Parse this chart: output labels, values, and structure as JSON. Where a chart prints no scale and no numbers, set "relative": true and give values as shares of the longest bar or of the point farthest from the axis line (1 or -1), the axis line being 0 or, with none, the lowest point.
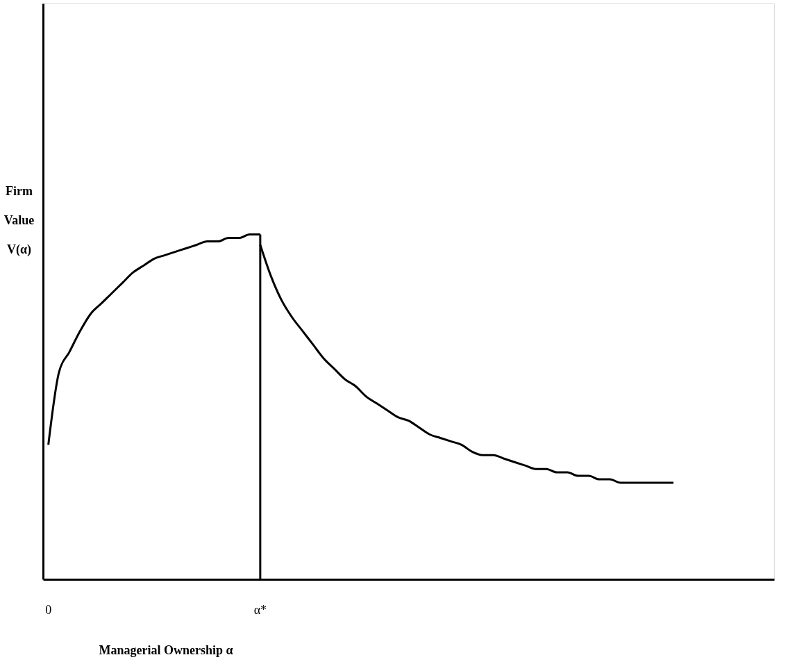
{
  "chart_data": {
    "type": "line",
    "relative": true,
    "xlabel": "Managerial Ownership  α",
    "ylabel": "Firm Value V(α)",
    "grid": false,
    "marker": "none",
    "line_style": "solid",
    "categories": [
      "0",
      null,
      null,
      null,
      null,
      null,
      null,
      null,
      null,
      null,
      null,
      null,
      null,
      null,
      null,
      null,
      null,
      null,
      null,
      null,
      "α*",
      null,
      null,
      null,
      null,
      null,
      null,
      null,
      null,
      null,
      null,
      null,
      null,
      null,
      null,
      null,
      null,
      null,
      null,
      null,
      null,
      null,
      null,
      null,
      null,
      null,
      null,
      null,
      null,
      null,
      null,
      null,
      null,
      null,
      null,
      null,
      null,
      null,
      null,
      null,
      null,
      null,
      null,
      null,
      null,
      null,
      null,
      null,
      null
    ],
    "series": [
      {
        "color": "#000000",
        "values": [
          0.39,
          0.6,
          0.66,
          0.72,
          0.77,
          0.8,
          0.83,
          0.86,
          0.89,
          0.91,
          0.93,
          0.94,
          0.95,
          0.96,
          0.97,
          0.98,
          0.98,
          0.99,
          0.99,
          1,
          1,
          null,
          null,
          null,
          null,
          null,
          null,
          null,
          null,
          null,
          null,
          null,
          null,
          null,
          null,
          null,
          null,
          null,
          null,
          null,
          null,
          null,
          null,
          null,
          null,
          null,
          null,
          null,
          null,
          null,
          null,
          null,
          null,
          null,
          null,
          null,
          null,
          null,
          null,
          null,
          null,
          null,
          null,
          null,
          null,
          null,
          null,
          null,
          null
        ]
      },
      {
        "color": "#000000",
        "values": [
          null,
          null,
          null,
          null,
          null,
          null,
          null,
          null,
          null,
          null,
          null,
          null,
          null,
          null,
          null,
          null,
          null,
          null,
          null,
          null,
          0.97,
          0.88,
          0.81,
          0.76,
          0.72,
          0.68,
          0.64,
          0.61,
          0.58,
          0.56,
          0.53,
          0.51,
          0.49,
          0.47,
          0.46,
          0.44,
          0.42,
          0.41,
          0.4,
          0.39,
          0.37,
          0.36,
          0.36,
          0.35,
          0.34,
          0.33,
          0.32,
          0.32,
          0.31,
          0.31,
          0.3,
          0.3,
          0.29,
          0.29,
          0.28,
          0.28,
          0.28,
          0.28,
          0.28,
          0.28,
          null,
          null,
          null,
          null,
          null,
          null,
          null,
          null,
          null
        ]
      }
    ],
    "ref_lines": [
      {
        "axis": "x",
        "value": "α*",
        "label": null,
        "color": "#000000"
      }
    ]
  }
}
